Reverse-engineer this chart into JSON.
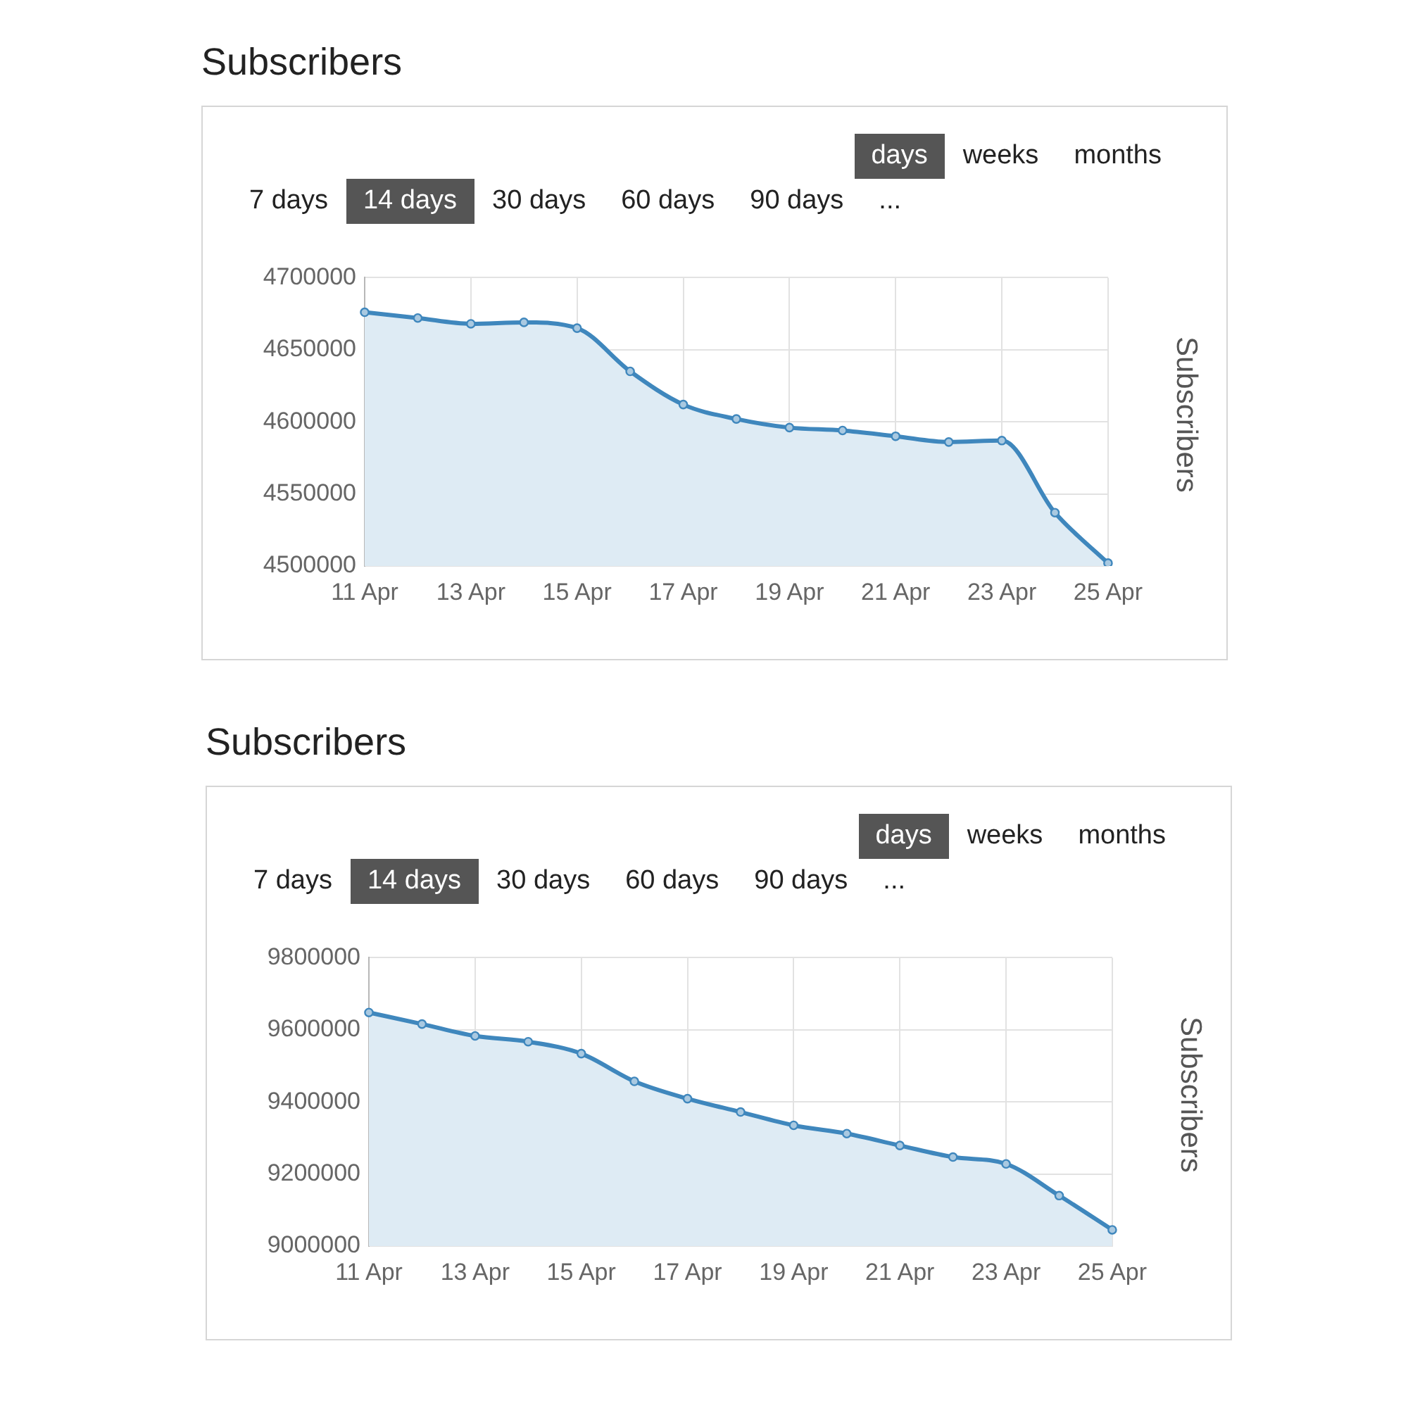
{
  "chart_data": [
    {
      "type": "area",
      "title": "Subscribers",
      "ylabel": "Subscribers",
      "annotations": [
        "days",
        "weeks",
        "months",
        "7 days",
        "14 days",
        "30 days",
        "60 days",
        "90 days",
        "..."
      ],
      "categories": [
        "11 Apr",
        null,
        "13 Apr",
        null,
        "15 Apr",
        null,
        "17 Apr",
        null,
        "19 Apr",
        null,
        "21 Apr",
        null,
        "23 Apr",
        null,
        "25 Apr"
      ],
      "series": [
        {
          "color": "#3f87bd",
          "values": [
            4676000,
            4672000,
            4668000,
            4669000,
            4665000,
            4635000,
            4612000,
            4602000,
            4596000,
            4594000,
            4590000,
            4586000,
            4587000,
            4537000,
            4502000
          ]
        }
      ],
      "ylim": [
        4500000,
        4700000
      ],
      "yticks": [
        4500000,
        4550000,
        4600000,
        4650000,
        4700000
      ],
      "grid": true,
      "legend": false,
      "marker": "circle"
    },
    {
      "type": "area",
      "title": "Subscribers",
      "ylabel": "Subscribers",
      "annotations": [
        "days",
        "weeks",
        "months",
        "7 days",
        "14 days",
        "30 days",
        "60 days",
        "90 days",
        "..."
      ],
      "categories": [
        "11 Apr",
        null,
        "13 Apr",
        null,
        "15 Apr",
        null,
        "17 Apr",
        null,
        "19 Apr",
        null,
        "21 Apr",
        null,
        "23 Apr",
        null,
        "25 Apr"
      ],
      "series": [
        {
          "color": "#3f87bd",
          "values": [
            9648000,
            9616000,
            9583000,
            9567000,
            9534000,
            9457000,
            9409000,
            9372000,
            9335000,
            9312000,
            9279000,
            9247000,
            9228000,
            9140000,
            9045000
          ]
        }
      ],
      "ylim": [
        9000000,
        9800000
      ],
      "yticks": [
        9000000,
        9200000,
        9400000,
        9600000,
        9800000
      ],
      "grid": true,
      "legend": false,
      "marker": "circle"
    }
  ]
}
